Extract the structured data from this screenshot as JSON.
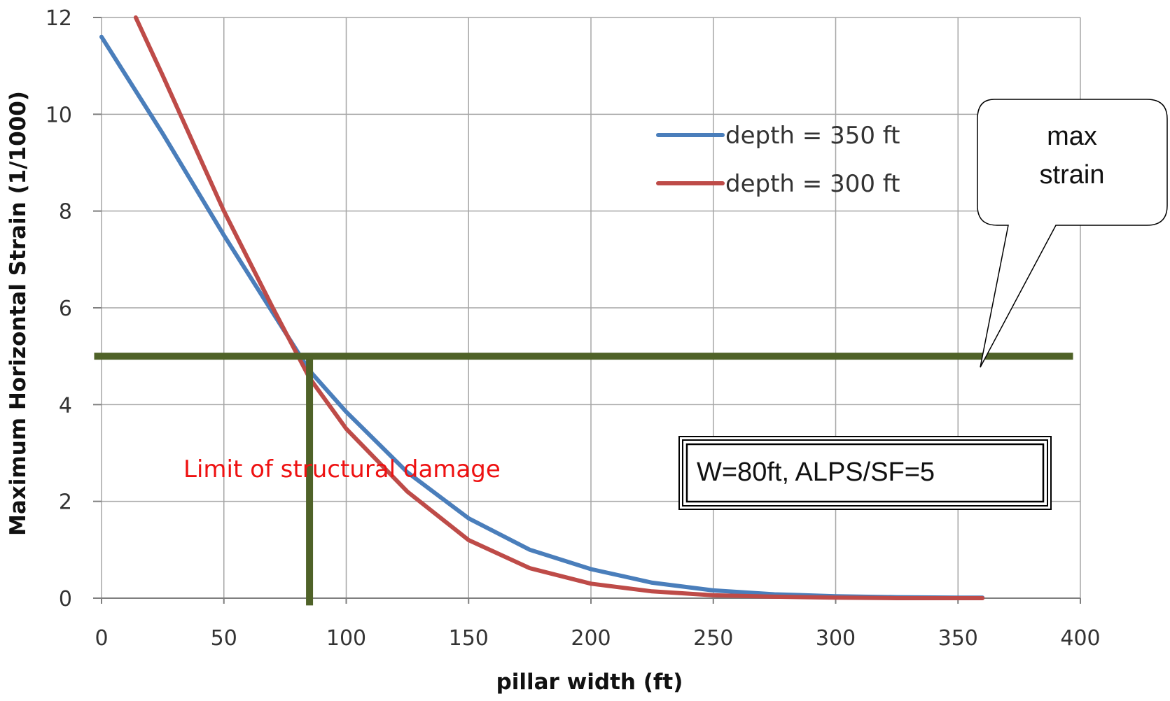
{
  "chart_data": {
    "type": "line",
    "title": "",
    "xlabel": "pillar width (ft)",
    "ylabel": "Maximum Horizontal  Strain (1/1000)",
    "xlim": [
      0,
      400
    ],
    "ylim": [
      0,
      12
    ],
    "xticks": [
      0,
      50,
      100,
      150,
      200,
      250,
      300,
      350,
      400
    ],
    "yticks": [
      0,
      2,
      4,
      6,
      8,
      10,
      12
    ],
    "grid": true,
    "legend_position": "top-right",
    "series": [
      {
        "name": "depth = 350 ft",
        "color": "#4a7ebb",
        "x": [
          0,
          25,
          50,
          70,
          85,
          100,
          125,
          150,
          175,
          200,
          225,
          250,
          275,
          300,
          325,
          350,
          360
        ],
        "y": [
          11.6,
          9.6,
          7.5,
          5.9,
          4.7,
          3.85,
          2.6,
          1.65,
          1.0,
          0.6,
          0.32,
          0.16,
          0.08,
          0.04,
          0.02,
          0.01,
          0.01
        ]
      },
      {
        "name": "depth = 300 ft",
        "color": "#be4b48",
        "x": [
          14,
          25,
          50,
          70,
          85,
          100,
          125,
          150,
          175,
          200,
          225,
          250,
          275,
          300,
          325,
          350,
          360
        ],
        "y": [
          12.0,
          10.8,
          8.0,
          6.0,
          4.55,
          3.5,
          2.2,
          1.2,
          0.62,
          0.3,
          0.14,
          0.06,
          0.03,
          0.01,
          0.0,
          0.0,
          0.0
        ]
      }
    ],
    "reference_lines": {
      "horizontal": {
        "y": 5,
        "x_start": -3,
        "x_end": 397,
        "color": "#4f6228"
      },
      "vertical": {
        "x": 85,
        "y_start": -0.15,
        "y_end": 5,
        "color": "#4f6228"
      }
    },
    "annotations": [
      {
        "text": "Limit of structural damage",
        "color": "#ee1111"
      },
      {
        "text": "W=80ft, ALPS/SF=5"
      }
    ],
    "callout": {
      "line1": "max",
      "line2": "strain"
    }
  }
}
